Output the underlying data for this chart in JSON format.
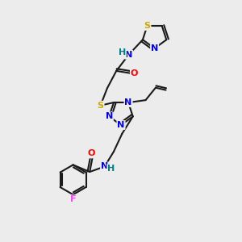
{
  "bg_color": "#ececec",
  "bond_color": "#1a1a1a",
  "colors": {
    "N": "#0000ff",
    "O": "#ff0000",
    "S": "#ccaa00",
    "F": "#ff44ff",
    "HN": "#008080",
    "C": "#1a1a1a"
  },
  "font_size": 8.0,
  "figsize": [
    3.0,
    3.0
  ],
  "dpi": 100
}
